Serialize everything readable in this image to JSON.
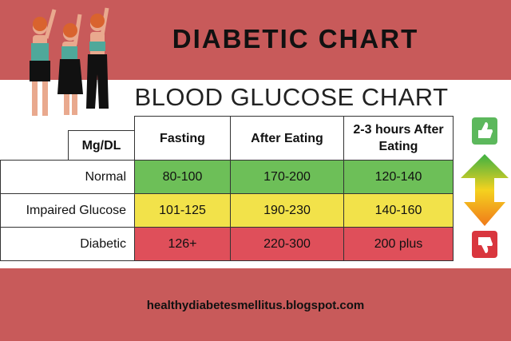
{
  "header": {
    "title": "DIABETIC CHART"
  },
  "chart_title": "BLOOD GLUCOSE CHART",
  "table": {
    "header": [
      "Mg/DL",
      "Fasting",
      "After Eating",
      "2-3 hours After Eating"
    ],
    "rows": [
      [
        "Normal",
        "80-100",
        "170-200",
        "120-140"
      ],
      [
        "Impaired Glucose",
        "101-125",
        "190-230",
        "140-160"
      ],
      [
        "Diabetic",
        "126+",
        "220-300",
        "200 plus"
      ]
    ]
  },
  "footer": {
    "url": "healthydiabetesmellitus.blogspot.com"
  }
}
